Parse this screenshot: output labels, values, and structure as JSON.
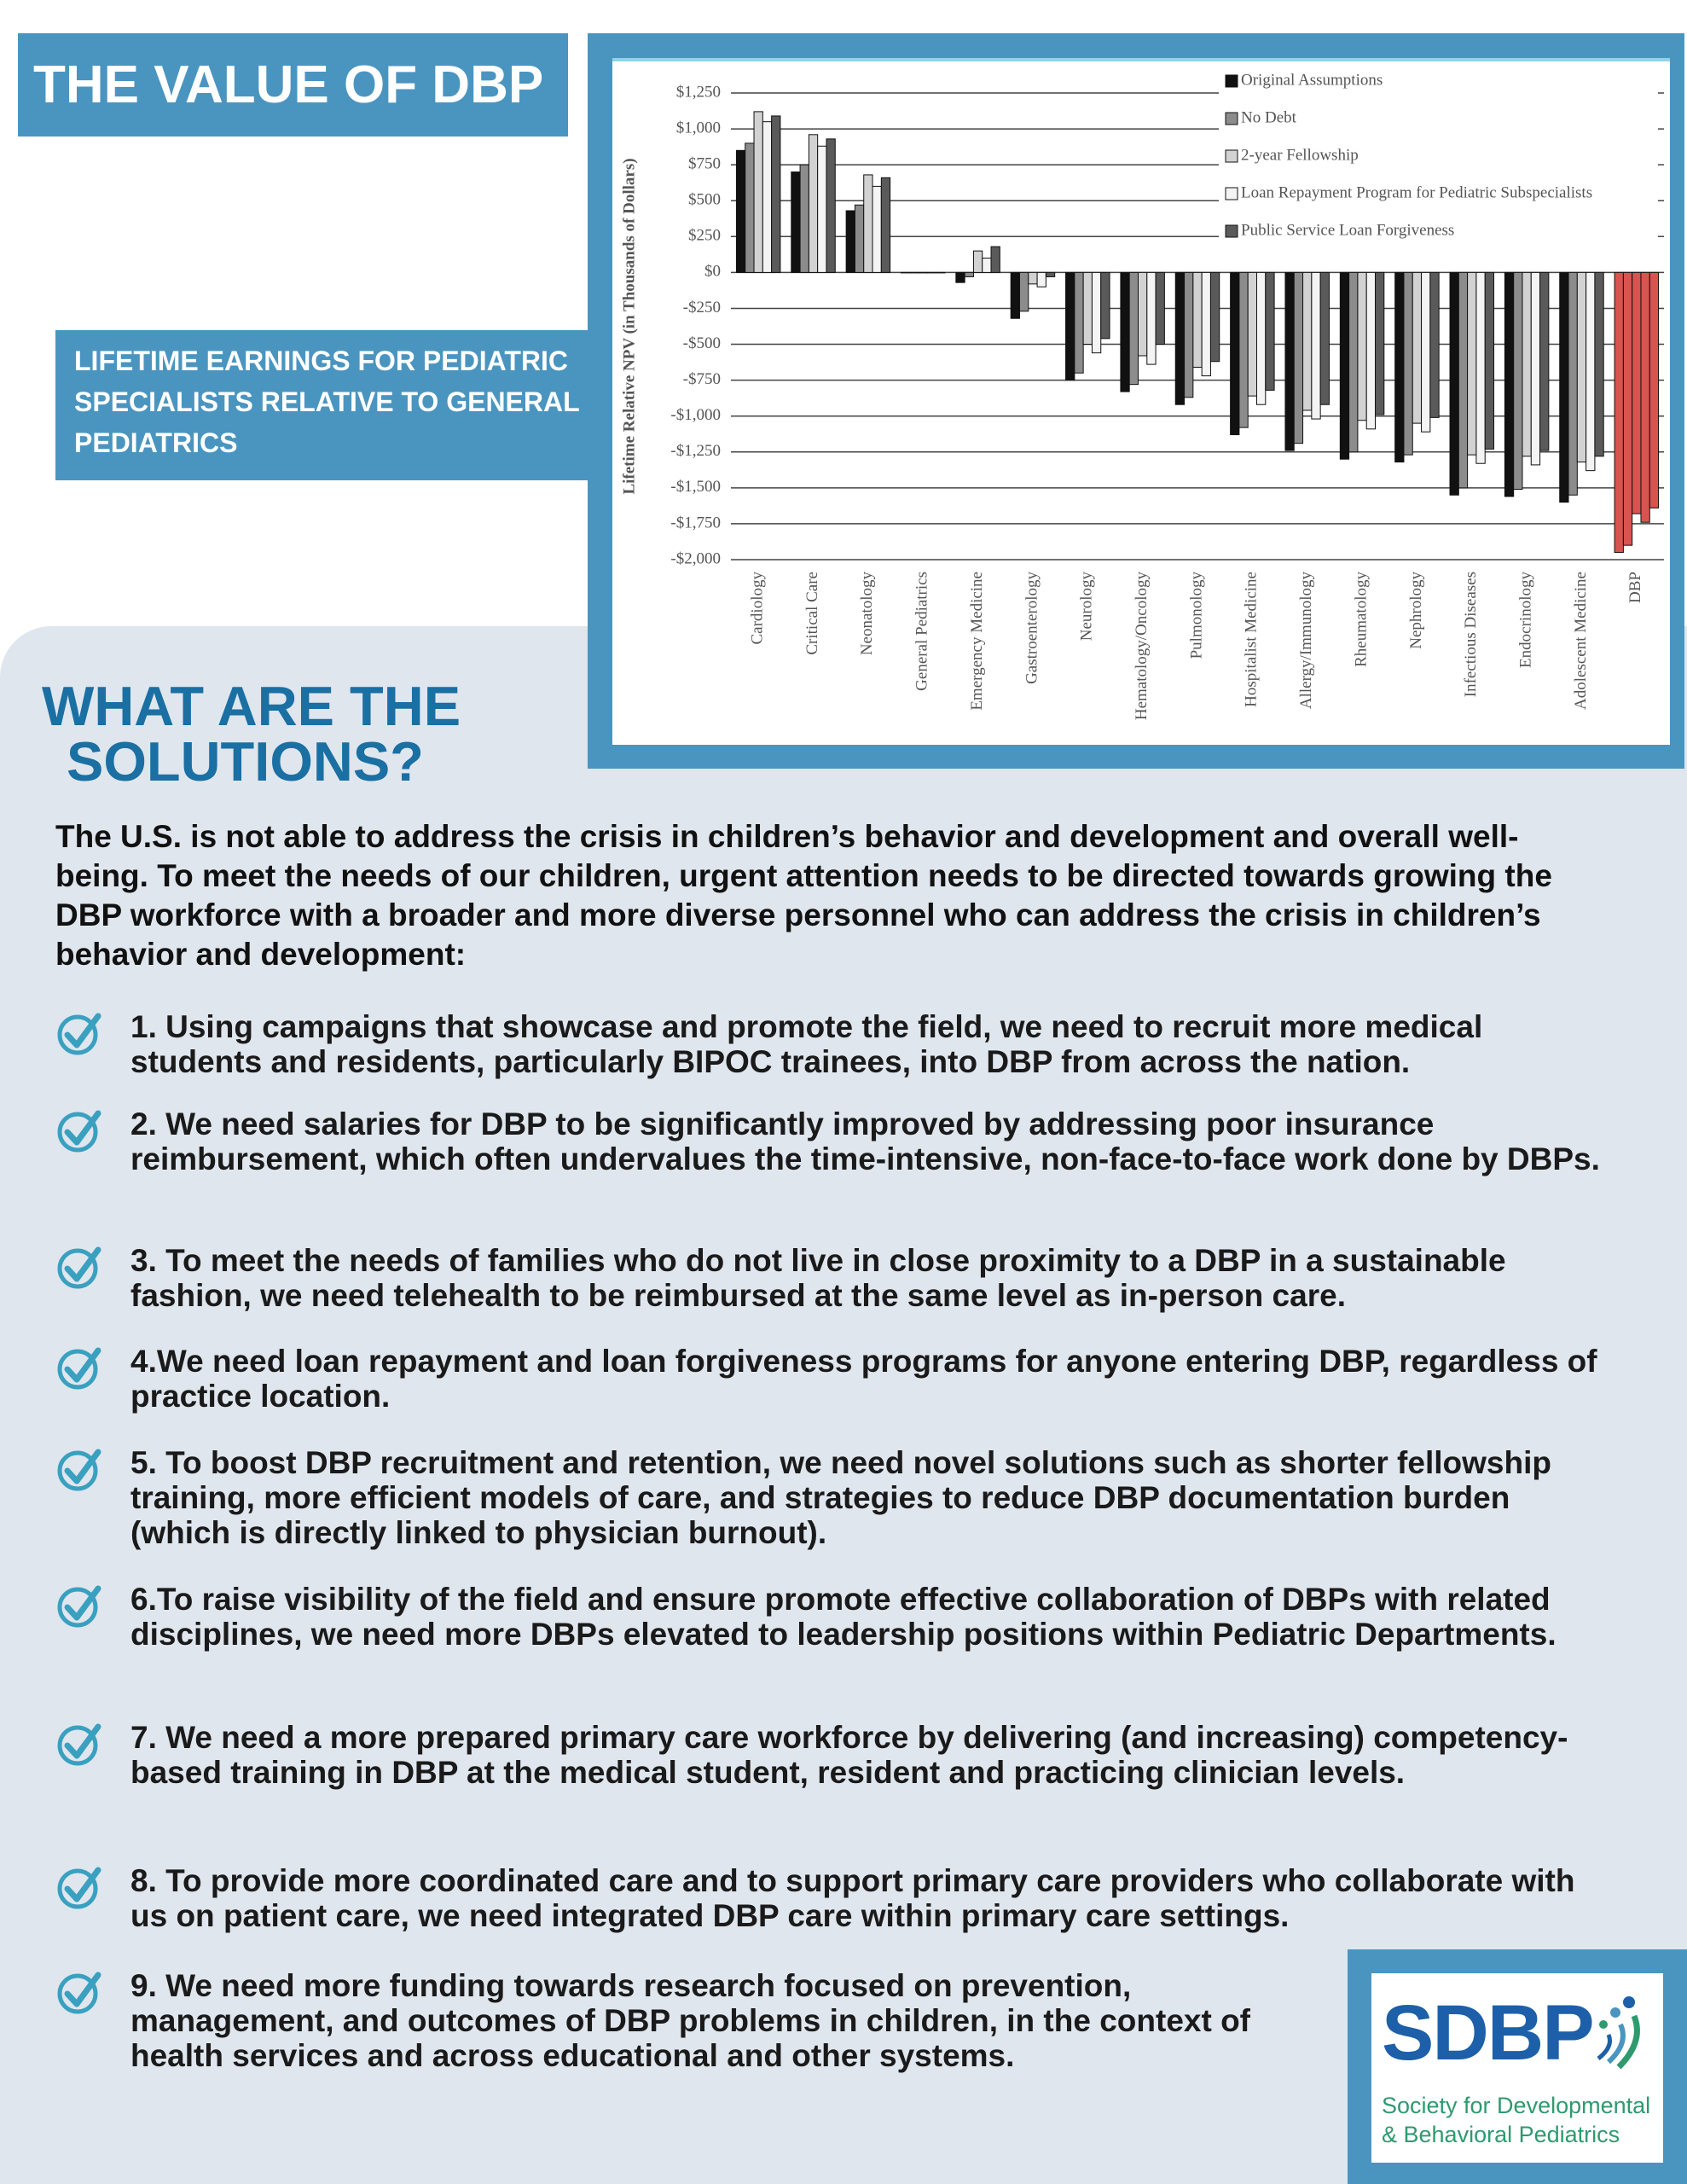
{
  "header": {
    "title": "THE VALUE OF DBP",
    "chart_caption": "LIFETIME EARNINGS FOR PEDIATRIC SPECIALISTS RELATIVE TO GENERAL PEDIATRICS"
  },
  "chart_data": {
    "type": "bar",
    "y_label": "Lifetime Relative NPV (in Thousands of Dollars)",
    "categories": [
      "Cardiology",
      "Critical Care",
      "Neonatology",
      "General Pediatrics",
      "Emergency Medicine",
      "Gastroenterology",
      "Neurology",
      "Hematology/Oncology",
      "Pulmonology",
      "Hospitalist Medicine",
      "Allergy/Immunology",
      "Rheumatology",
      "Nephrology",
      "Infectious Diseases",
      "Endocrinology",
      "Adolescent Medicine",
      "DBP"
    ],
    "series": [
      {
        "name": "Original Assumptions",
        "color": "#111111",
        "values": [
          850,
          700,
          430,
          0,
          -70,
          -320,
          -750,
          -830,
          -920,
          -1130,
          -1240,
          -1300,
          -1320,
          -1550,
          -1560,
          -1600,
          -1950
        ]
      },
      {
        "name": "No Debt",
        "color": "#8c8c8c",
        "values": [
          900,
          750,
          470,
          0,
          -30,
          -270,
          -700,
          -780,
          -870,
          -1080,
          -1190,
          -1250,
          -1270,
          -1500,
          -1510,
          -1550,
          -1900
        ]
      },
      {
        "name": "2-year Fellowship",
        "color": "#d2d2d2",
        "values": [
          1120,
          960,
          680,
          0,
          150,
          -80,
          -500,
          -580,
          -660,
          -860,
          -960,
          -1030,
          -1050,
          -1270,
          -1280,
          -1320,
          -1680
        ]
      },
      {
        "name": "Loan Repayment Program for Pediatric Subspecialists",
        "color": "#f4f4f4",
        "values": [
          1050,
          880,
          600,
          0,
          100,
          -100,
          -560,
          -640,
          -720,
          -920,
          -1020,
          -1090,
          -1110,
          -1330,
          -1340,
          -1380,
          -1740
        ]
      },
      {
        "name": "Public Service Loan Forgiveness",
        "color": "#5a5a5a",
        "values": [
          1090,
          930,
          660,
          0,
          180,
          -30,
          -460,
          -500,
          -620,
          -820,
          -920,
          -990,
          -1010,
          -1230,
          -1240,
          -1280,
          -1640
        ]
      }
    ],
    "highlight": {
      "category": "DBP",
      "color": "#d9534f"
    },
    "ylim": [
      -2000,
      1250
    ],
    "yticks": [
      {
        "value": -2000,
        "label": "-$2,000"
      },
      {
        "value": -1750,
        "label": "-$1,750"
      },
      {
        "value": -1500,
        "label": "-$1,500"
      },
      {
        "value": -1250,
        "label": "-$1,250"
      },
      {
        "value": -1000,
        "label": "-$1,000"
      },
      {
        "value": -750,
        "label": "-$750"
      },
      {
        "value": -500,
        "label": "-$500"
      },
      {
        "value": -250,
        "label": "-$250"
      },
      {
        "value": 0,
        "label": "$0"
      },
      {
        "value": 250,
        "label": "$250"
      },
      {
        "value": 500,
        "label": "$500"
      },
      {
        "value": 750,
        "label": "$750"
      },
      {
        "value": 1000,
        "label": "$1,000"
      },
      {
        "value": 1250,
        "label": "$1,250"
      }
    ],
    "grid": true,
    "legend": "top-right"
  },
  "solutions": {
    "heading": [
      "WHAT ARE THE",
      "SOLUTIONS?"
    ],
    "intro": "The U.S. is not able to address the crisis in children’s behavior and development and overall well-being. To meet the needs of our children, urgent attention needs to be directed towards growing the DBP workforce with a broader and more diverse personnel who can address the crisis in children’s behavior and development:",
    "items": [
      "1. Using campaigns that showcase and promote the field, we need to recruit more medical students and residents, particularly BIPOC trainees, into DBP from across the nation.",
      "2. We need salaries for DBP to be significantly improved by addressing poor insurance reimbursement, which often undervalues the time-intensive, non-face-to-face work done by DBPs.",
      "3. To meet the needs of families who do not live in close proximity to a DBP in a sustainable fashion, we need telehealth to be reimbursed at the same level as in-person care.",
      "4.We need loan repayment and loan forgiveness programs for anyone entering DBP, regardless of practice location.",
      "5. To boost DBP recruitment and retention, we need novel solutions such as shorter fellowship training, more efficient models of care, and strategies to reduce DBP documentation burden (which is directly linked to physician burnout).",
      "6.To raise visibility of the field and ensure promote effective collaboration of DBPs with related disciplines, we need more DBPs elevated to leadership positions within Pediatric Departments.",
      "7. We need a more prepared primary care workforce by delivering (and increasing) competency-based training in DBP at the medical student, resident and practicing clinician levels.",
      "8. To provide more coordinated care and to support primary care providers who collaborate with us on patient care, we need integrated DBP care within primary care settings.",
      "9. We need more funding towards research focused on prevention, management, and outcomes of DBP problems in children, in the context of health services and across educational and other systems."
    ]
  },
  "logo": {
    "name": "SDBP",
    "tagline": [
      "Society for Developmental",
      "& Behavioral Pediatrics"
    ]
  }
}
